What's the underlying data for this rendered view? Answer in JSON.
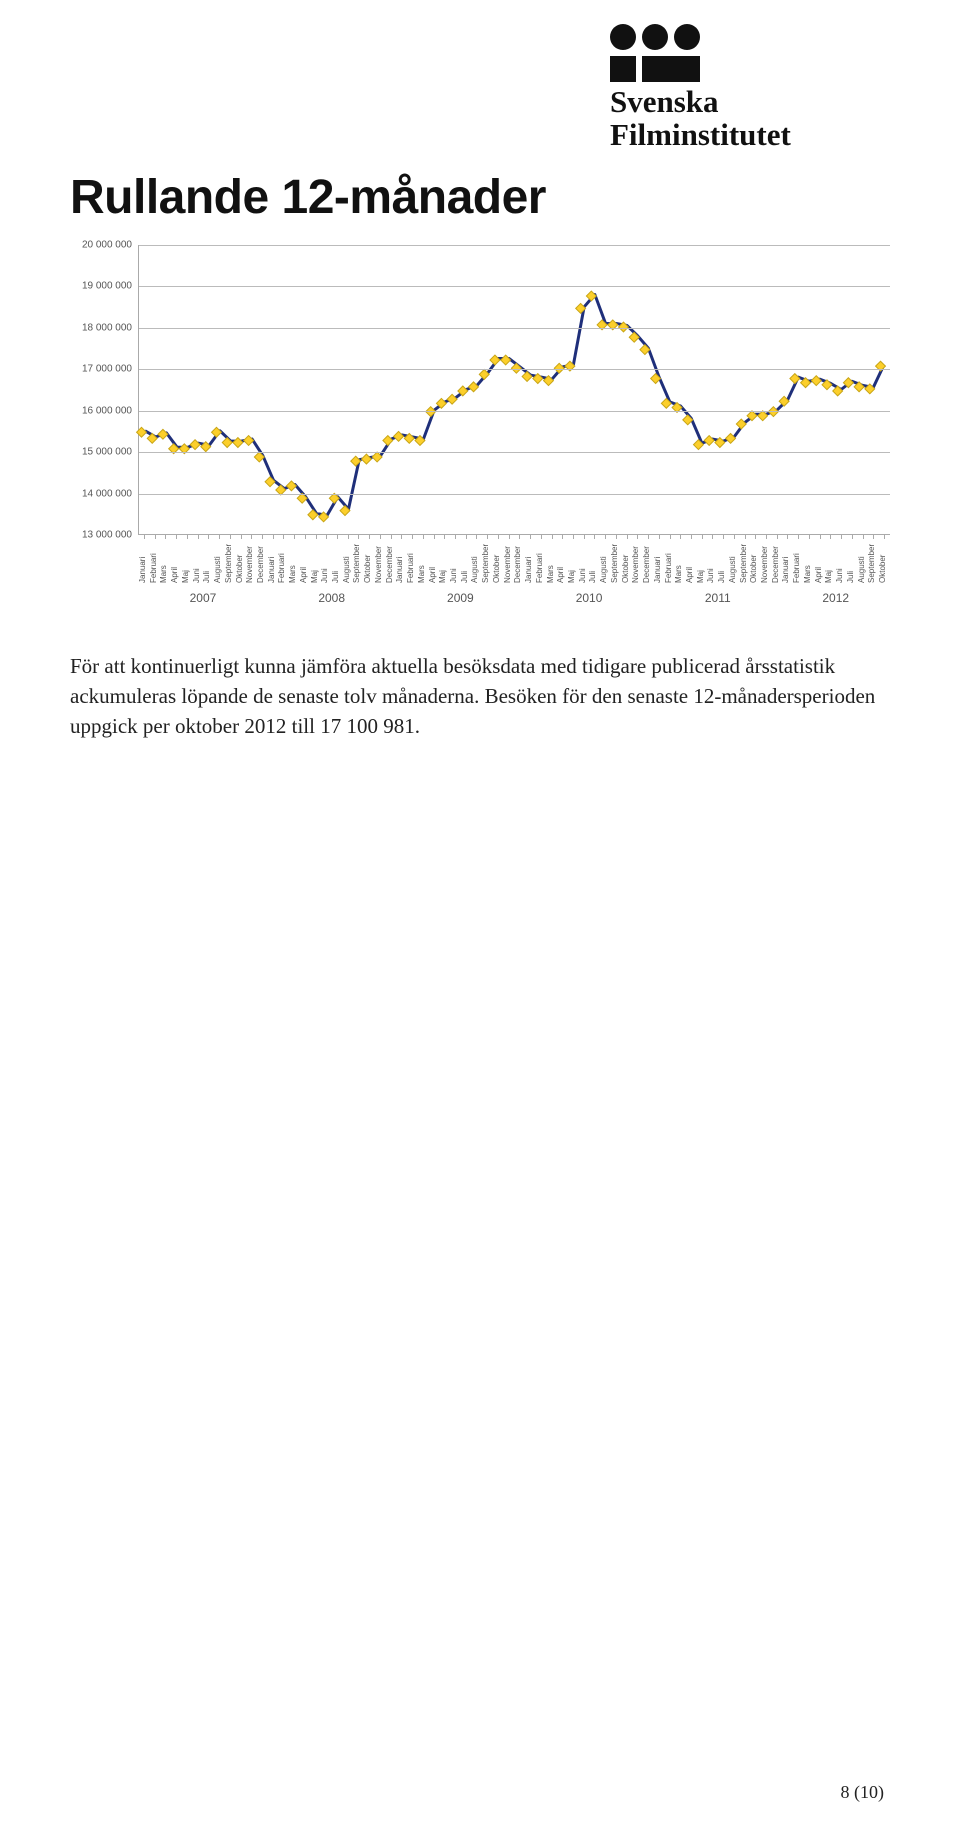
{
  "logo": {
    "line1": "Svenska",
    "line2": "Filminstitutet",
    "mark_color": "#111111"
  },
  "title": "Rullande 12-månader",
  "body": "För att kontinuerligt kunna jämföra aktuella besöksdata med tidigare publicerad årsstatistik ackumuleras löpande de senaste tolv månaderna. Besöken för den senaste 12-månadersperioden uppgick per oktober 2012 till 17 100 981.",
  "page_number": "8 (10)",
  "chart": {
    "type": "line",
    "line_color": "#1f2f7a",
    "line_width": 3,
    "marker_fill": "#fccf2b",
    "marker_stroke": "#c8a516",
    "marker_size": 5,
    "grid_color": "#bbbbbb",
    "axis_color": "#aaaaaa",
    "background_color": "#ffffff",
    "tick_font_size": 10,
    "month_font_size": 8,
    "year_font_size": 12,
    "ylim": [
      13000000,
      20000000
    ],
    "ytick_step": 1000000,
    "ytick_labels": [
      "13 000 000",
      "14 000 000",
      "15 000 000",
      "16 000 000",
      "17 000 000",
      "18 000 000",
      "19 000 000",
      "20 000 000"
    ],
    "months": [
      "Januari",
      "Februari",
      "Mars",
      "April",
      "Maj",
      "Juni",
      "Juli",
      "Augusti",
      "September",
      "Oktober",
      "November",
      "December"
    ],
    "years": [
      "2007",
      "2008",
      "2009",
      "2010",
      "2011",
      "2012"
    ],
    "months_last_year_count": 10,
    "values": [
      15500000,
      15350000,
      15450000,
      15100000,
      15100000,
      15200000,
      15150000,
      15500000,
      15250000,
      15250000,
      15300000,
      14900000,
      14300000,
      14100000,
      14200000,
      13900000,
      13500000,
      13450000,
      13900000,
      13600000,
      14800000,
      14850000,
      14900000,
      15300000,
      15400000,
      15350000,
      15300000,
      16000000,
      16200000,
      16300000,
      16500000,
      16600000,
      16900000,
      17250000,
      17250000,
      17050000,
      16850000,
      16800000,
      16750000,
      17050000,
      17100000,
      18500000,
      18800000,
      18100000,
      18100000,
      18050000,
      17800000,
      17500000,
      16800000,
      16200000,
      16100000,
      15800000,
      15200000,
      15300000,
      15250000,
      15350000,
      15700000,
      15900000,
      15900000,
      16000000,
      16250000,
      16800000,
      16700000,
      16750000,
      16650000,
      16500000,
      16700000,
      16600000,
      16550000,
      17100000
    ]
  }
}
